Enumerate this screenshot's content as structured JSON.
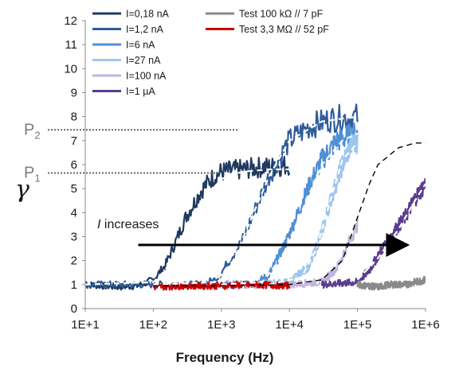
{
  "chart_data": {
    "type": "line",
    "xlabel": "Frequency (Hz)",
    "ylabel": "γ",
    "x_scale": "log",
    "xlim": [
      10,
      1000000
    ],
    "ylim": [
      0,
      12
    ],
    "x_ticks": [
      "1E+1",
      "1E+2",
      "1E+3",
      "1E+4",
      "1E+5",
      "1E+6"
    ],
    "y_ticks": [
      "0",
      "1",
      "2",
      "3",
      "4",
      "5",
      "6",
      "7",
      "8",
      "9",
      "10",
      "11",
      "12"
    ],
    "grid": false,
    "legend_position": "top-left, inside plot",
    "series": [
      {
        "name": "I=0,18 nA",
        "color": "#1f3a5f",
        "x": [
          10,
          30,
          60,
          100,
          150,
          200,
          300,
          500,
          700,
          1000,
          2000,
          4000,
          6000,
          10000
        ],
        "y": [
          1.0,
          0.9,
          0.95,
          1.2,
          1.8,
          2.6,
          3.8,
          4.9,
          5.4,
          5.7,
          5.8,
          5.9,
          5.9,
          6.0
        ]
      },
      {
        "name": "I=1,2 nA",
        "color": "#2e5c99",
        "x": [
          10,
          100,
          500,
          800,
          1000,
          2000,
          3000,
          5000,
          10000,
          20000,
          40000,
          100000
        ],
        "y": [
          1.0,
          1.0,
          1.0,
          1.2,
          1.5,
          2.8,
          4.0,
          5.5,
          7.0,
          7.6,
          7.9,
          8.0
        ]
      },
      {
        "name": "I=6 nA",
        "color": "#4f8fd6",
        "x": [
          1000,
          3000,
          5000,
          8000,
          10000,
          20000,
          30000,
          50000,
          100000
        ],
        "y": [
          1.0,
          1.0,
          1.4,
          2.5,
          3.1,
          5.2,
          6.2,
          7.0,
          7.3
        ]
      },
      {
        "name": "I=27 nA",
        "color": "#9cc6ee",
        "x": [
          3000,
          10000,
          20000,
          30000,
          40000,
          60000,
          80000,
          100000
        ],
        "y": [
          1.0,
          1.1,
          1.8,
          3.2,
          4.5,
          6.0,
          6.8,
          7.0
        ]
      },
      {
        "name": "I=100 nA",
        "color": "#c2b5dd",
        "x": [
          1000,
          10000,
          30000,
          50000,
          70000,
          100000
        ],
        "y": [
          1.0,
          1.0,
          1.1,
          1.7,
          2.6,
          3.5
        ]
      },
      {
        "name": "I=1 µA",
        "color": "#5a3d8e",
        "x": [
          30000,
          100000,
          150000,
          200000,
          300000,
          500000,
          700000,
          1000000
        ],
        "y": [
          1.0,
          1.1,
          1.6,
          2.2,
          3.0,
          3.8,
          4.6,
          5.2
        ]
      },
      {
        "name": "Test 100 kΩ // 7 pF",
        "color": "#8a8a8a",
        "x": [
          100000,
          200000,
          300000,
          500000,
          700000,
          1000000
        ],
        "y": [
          1.0,
          0.9,
          1.0,
          1.0,
          1.1,
          1.2
        ]
      },
      {
        "name": "Test 3,3 MΩ // 52 pF",
        "color": "#cc0000",
        "x": [
          100,
          300,
          1000,
          3000,
          10000
        ],
        "y": [
          0.9,
          0.95,
          0.95,
          1.0,
          0.95
        ]
      }
    ],
    "fit_curves": [
      {
        "color": "#ffffff",
        "x": [
          10,
          100,
          150,
          250,
          400,
          700,
          1000,
          2000,
          5000,
          10000
        ],
        "y": [
          1.0,
          1.1,
          1.6,
          2.7,
          3.9,
          4.9,
          5.4,
          5.7,
          5.8,
          5.8
        ]
      },
      {
        "color": "#ffffff",
        "x": [
          100,
          800,
          1500,
          3000,
          5000,
          10000,
          30000,
          100000
        ],
        "y": [
          1.0,
          1.1,
          2.0,
          4.0,
          5.5,
          7.0,
          7.8,
          8.0
        ]
      },
      {
        "color": "#ffffff",
        "x": [
          1000,
          4000,
          8000,
          15000,
          30000,
          60000,
          100000
        ],
        "y": [
          1.0,
          1.1,
          2.2,
          4.0,
          6.0,
          7.0,
          7.3
        ]
      },
      {
        "color": "#ffffff",
        "x": [
          5000,
          15000,
          25000,
          40000,
          60000,
          100000
        ],
        "y": [
          1.0,
          1.3,
          2.5,
          4.5,
          6.2,
          6.9
        ]
      },
      {
        "color": "#ffffff",
        "x": [
          100000,
          200000,
          400000,
          700000,
          1000000
        ],
        "y": [
          1.2,
          2.1,
          3.3,
          4.5,
          5.2
        ]
      },
      {
        "color": "#000000",
        "x": [
          100,
          1000,
          10000,
          30000,
          60000,
          100000,
          150000,
          200000,
          400000,
          700000,
          1000000
        ],
        "y": [
          0.95,
          0.95,
          1.0,
          1.2,
          2.0,
          3.8,
          5.2,
          6.0,
          6.7,
          6.9,
          6.9
        ]
      }
    ],
    "annotations": {
      "p2_label": "P",
      "p2_sub": "2",
      "p2_value": 7.45,
      "p1_label": "P",
      "p1_sub": "1",
      "p1_value": 5.65,
      "arrow_label_italic": "I",
      "arrow_label_rest": " increases",
      "arrow_y": 2.65,
      "arrow_x_start": 60,
      "arrow_x_end": 500000
    }
  }
}
